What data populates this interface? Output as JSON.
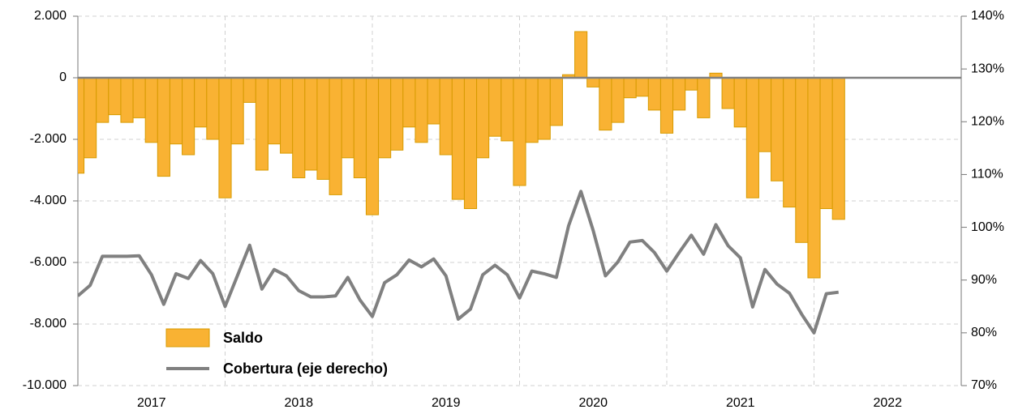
{
  "chart_data": {
    "type": "bar",
    "categories": [
      null,
      null,
      null,
      null,
      null,
      null,
      null,
      null,
      null,
      null,
      null,
      null,
      null,
      null,
      null,
      null,
      null,
      null,
      null,
      null,
      null,
      null,
      null,
      null,
      null,
      null,
      null,
      null,
      null,
      null,
      null,
      null,
      null,
      null,
      null,
      null,
      null,
      null,
      null,
      null,
      null,
      null,
      null,
      null,
      null,
      null,
      null,
      null,
      null,
      null,
      null,
      null,
      null,
      null,
      null,
      null,
      null,
      null,
      null,
      null,
      null,
      null,
      null
    ],
    "series": [
      {
        "name": "Saldo",
        "type": "bar",
        "color": "#f9b233",
        "edge": "#d79b00",
        "values": [
          -3100,
          -2600,
          -1450,
          -1200,
          -1450,
          -1300,
          -2100,
          -3200,
          -2150,
          -2500,
          -1600,
          -2000,
          -3900,
          -2150,
          -800,
          -3000,
          -2150,
          -2450,
          -3250,
          -3000,
          -3300,
          -3800,
          -2600,
          -3250,
          -4450,
          -2600,
          -2350,
          -1600,
          -2100,
          -1500,
          -2500,
          -3950,
          -4250,
          -2600,
          -1900,
          -2050,
          -3500,
          -2100,
          -2000,
          -1550,
          100,
          1500,
          -300,
          -1700,
          -1450,
          -650,
          -600,
          -1050,
          -1800,
          -1050,
          -400,
          -1300,
          150,
          -1000,
          -1600,
          -3900,
          -2400,
          -3350,
          -4200,
          -5350,
          -6500,
          -4250,
          -4600
        ]
      },
      {
        "name": "Cobertura (eje derecho)",
        "type": "line",
        "axis": "y2",
        "color": "#808080",
        "values": [
          87,
          89,
          94.5,
          94.5,
          94.5,
          94.6,
          91,
          85.4,
          91.2,
          90.3,
          93.7,
          91.2,
          85,
          90.8,
          96.6,
          88.3,
          92,
          90.8,
          88,
          86.8,
          86.8,
          87,
          90.5,
          86.2,
          83.1,
          89.5,
          91,
          93.8,
          92.5,
          94,
          90.8,
          82.6,
          84.5,
          91,
          92.8,
          91,
          86.6,
          91.7,
          91.2,
          90.5,
          100.3,
          106.8,
          99.4,
          90.8,
          93.4,
          97.2,
          97.5,
          95.2,
          91.7,
          95.2,
          98.5,
          94.9,
          100.5,
          96.5,
          94.2,
          84.9,
          92,
          89.2,
          87.5,
          83.5,
          80,
          87.4,
          87.7
        ]
      }
    ],
    "xlim": [
      0,
      72
    ],
    "xticks": [
      {
        "value": 6,
        "label": "2017"
      },
      {
        "value": 18,
        "label": "2018"
      },
      {
        "value": 30,
        "label": "2019"
      },
      {
        "value": 42,
        "label": "2020"
      },
      {
        "value": 54,
        "label": "2021"
      },
      {
        "value": 66,
        "label": "2022"
      }
    ],
    "xgrid": [
      12,
      24,
      36,
      48,
      60
    ],
    "ylim": [
      -10000,
      2000
    ],
    "yticks": [
      {
        "value": 2000,
        "label": "2.000"
      },
      0,
      {
        "value": -2000,
        "label": "-2.000"
      },
      {
        "value": -4000,
        "label": "-4.000"
      },
      {
        "value": -6000,
        "label": "-6.000"
      },
      {
        "value": -8000,
        "label": "-8.000"
      },
      {
        "value": -10000,
        "label": "-10.000"
      }
    ],
    "y2lim": [
      70,
      140
    ],
    "y2ticks": [
      {
        "value": 140,
        "label": "140%"
      },
      {
        "value": 130,
        "label": "130%"
      },
      {
        "value": 120,
        "label": "120%"
      },
      {
        "value": 110,
        "label": "110%"
      },
      {
        "value": 100,
        "label": "100%"
      },
      {
        "value": 90,
        "label": "90%"
      },
      {
        "value": 80,
        "label": "80%"
      },
      {
        "value": 70,
        "label": "70%"
      }
    ],
    "grid": true,
    "legend": "lower left"
  }
}
